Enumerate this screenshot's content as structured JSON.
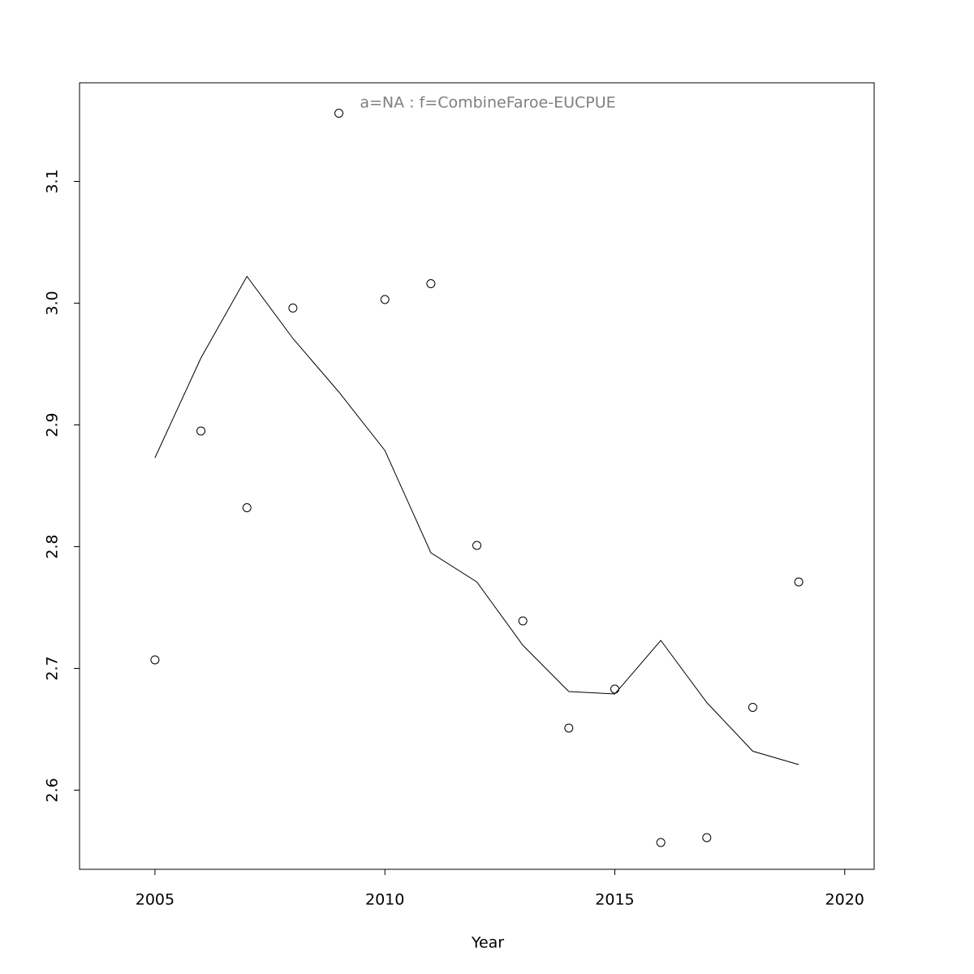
{
  "chart_data": {
    "type": "line",
    "annotation": "a=NA  :  f=CombineFaroe-EUCPUE",
    "x_label": "Year",
    "x": [
      2005,
      2006,
      2007,
      2008,
      2009,
      2010,
      2011,
      2012,
      2013,
      2014,
      2015,
      2016,
      2017,
      2018,
      2019
    ],
    "series": [
      {
        "style": "points",
        "color": "#000000",
        "values": [
          2.707,
          2.895,
          2.832,
          2.996,
          3.156,
          3.003,
          3.016,
          2.801,
          2.739,
          2.651,
          2.683,
          2.557,
          2.561,
          2.668,
          2.771
        ]
      },
      {
        "style": "line",
        "color": "#000000",
        "values": [
          2.873,
          2.955,
          3.022,
          2.971,
          2.927,
          2.879,
          2.795,
          2.771,
          2.719,
          2.681,
          2.679,
          2.723,
          2.672,
          2.632,
          2.621
        ]
      }
    ],
    "xlim": [
      2003.36,
      2020.64
    ],
    "ylim": [
      2.535,
      3.181
    ],
    "xticks": [
      2005,
      2010,
      2015,
      2020
    ],
    "yticks": [
      2.6,
      2.7,
      2.8,
      2.9,
      {
        "value": 3,
        "label": "3.0"
      },
      3.1
    ],
    "grid": false
  }
}
